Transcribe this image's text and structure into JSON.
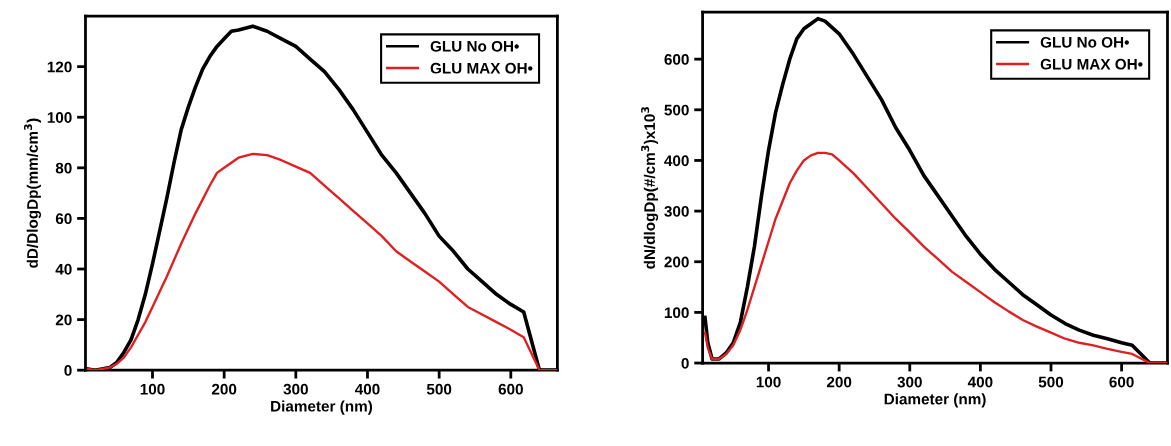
{
  "chart_data": [
    {
      "type": "line",
      "xlabel": "Diameter (nm)",
      "ylabel": "dD/DlogDp(mm/cm$^{3}$)",
      "xlim": [
        6.5,
        665
      ],
      "ylim": [
        0,
        140
      ],
      "xticks": [
        100,
        200,
        300,
        400,
        500,
        600
      ],
      "yticks": [
        0,
        20,
        40,
        60,
        80,
        100,
        120
      ],
      "grid": false,
      "legend": "top right",
      "line_style": "solid",
      "marker": "none",
      "series": [
        {
          "name": "GLU No OH•",
          "color": "#000000",
          "x": [
            10,
            20,
            40,
            50,
            60,
            70,
            80,
            90,
            100,
            110,
            120,
            130,
            140,
            150,
            160,
            170,
            180,
            190,
            200,
            210,
            220,
            240,
            260,
            280,
            300,
            320,
            340,
            360,
            380,
            400,
            420,
            440,
            460,
            480,
            500,
            520,
            540,
            560,
            580,
            600,
            618,
            640,
            665
          ],
          "values": [
            0.5,
            0,
            1,
            3,
            7,
            12,
            20,
            30,
            42,
            55,
            68,
            82,
            95,
            104,
            112,
            119,
            124,
            128,
            131,
            134,
            134.5,
            136,
            134,
            131,
            128,
            123,
            118,
            111,
            103,
            94,
            85,
            78,
            70,
            62,
            53,
            47,
            40,
            35,
            30,
            26,
            23,
            0,
            0
          ]
        },
        {
          "name": "GLU MAX OH•",
          "color": "#e02020",
          "x": [
            10,
            20,
            40,
            50,
            60,
            70,
            80,
            90,
            100,
            120,
            140,
            160,
            180,
            190,
            200,
            220,
            240,
            260,
            280,
            300,
            320,
            340,
            360,
            380,
            400,
            420,
            440,
            460,
            480,
            500,
            520,
            540,
            560,
            580,
            600,
            618,
            640,
            665
          ],
          "values": [
            0.5,
            0,
            1,
            2.5,
            5,
            9,
            14,
            19,
            25,
            37,
            50,
            62,
            73,
            78,
            80,
            84,
            85.5,
            85,
            83,
            80.5,
            78,
            73,
            68,
            63,
            58,
            53,
            47,
            43,
            39,
            35,
            30,
            25,
            22,
            19,
            16,
            13,
            0,
            0
          ]
        }
      ]
    },
    {
      "type": "line",
      "xlabel": "Diameter (nm)",
      "ylabel": "dN/dlogDp(#/cm$^{3}$)x10$^{3}$",
      "xlim": [
        6.6,
        665
      ],
      "ylim": [
        0,
        693
      ],
      "xticks": [
        100,
        200,
        300,
        400,
        500,
        600
      ],
      "yticks": [
        0,
        100,
        200,
        300,
        400,
        500,
        600
      ],
      "grid": false,
      "legend": "top right",
      "line_style": "solid",
      "marker": "none",
      "series": [
        {
          "name": "GLU No OH•",
          "color": "#000000",
          "x": [
            10,
            14,
            20,
            30,
            40,
            50,
            60,
            70,
            80,
            90,
            100,
            110,
            120,
            130,
            140,
            150,
            160,
            170,
            180,
            200,
            220,
            240,
            260,
            280,
            300,
            320,
            340,
            360,
            380,
            400,
            420,
            440,
            460,
            480,
            500,
            520,
            540,
            560,
            580,
            600,
            615,
            640,
            665
          ],
          "values": [
            90,
            40,
            8,
            8,
            20,
            40,
            80,
            150,
            230,
            330,
            420,
            495,
            550,
            600,
            640,
            660,
            670,
            680,
            675,
            650,
            610,
            565,
            520,
            465,
            420,
            370,
            330,
            290,
            250,
            215,
            185,
            160,
            135,
            115,
            95,
            78,
            65,
            55,
            48,
            40,
            35,
            0,
            0
          ]
        },
        {
          "name": "GLU MAX OH•",
          "color": "#e02020",
          "x": [
            10,
            14,
            20,
            30,
            40,
            50,
            60,
            70,
            80,
            90,
            100,
            110,
            120,
            130,
            140,
            150,
            160,
            170,
            180,
            190,
            200,
            220,
            240,
            260,
            280,
            300,
            320,
            340,
            360,
            380,
            400,
            420,
            440,
            460,
            480,
            500,
            520,
            540,
            560,
            580,
            600,
            615,
            640,
            665
          ],
          "values": [
            60,
            30,
            8,
            8,
            18,
            35,
            65,
            105,
            150,
            195,
            240,
            285,
            320,
            355,
            380,
            400,
            410,
            415,
            415,
            412,
            400,
            375,
            345,
            315,
            285,
            258,
            230,
            205,
            180,
            160,
            140,
            120,
            102,
            85,
            72,
            60,
            48,
            40,
            35,
            28,
            22,
            18,
            0,
            0
          ]
        }
      ]
    }
  ]
}
